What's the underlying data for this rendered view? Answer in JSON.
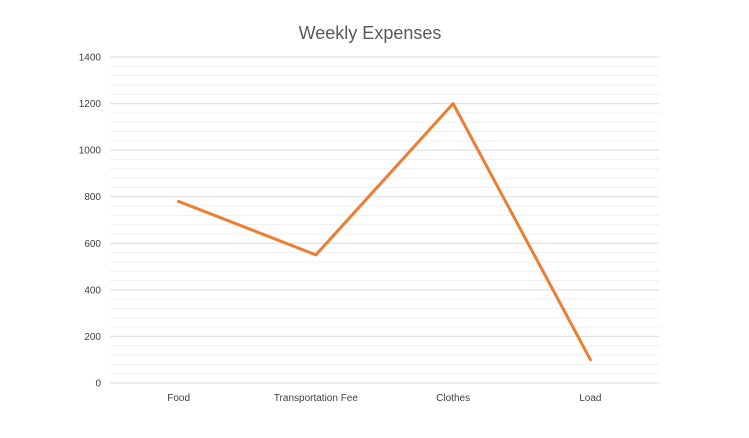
{
  "chart_data": {
    "type": "line",
    "title": "Weekly Expenses",
    "xlabel": "",
    "ylabel": "",
    "categories": [
      "Food",
      "Transportation Fee",
      "Clothes",
      "Load"
    ],
    "series": [
      {
        "values": [
          780,
          550,
          1200,
          100
        ],
        "color": "#ed7d31"
      }
    ],
    "ylim": [
      0,
      1400
    ],
    "y_ticks": [
      "0",
      "200",
      "400",
      "600",
      "800",
      "1000",
      "1200",
      "1400"
    ],
    "y_tick_values": [
      0,
      200,
      400,
      600,
      800,
      1000,
      1200,
      1400
    ],
    "grid": true,
    "minor_grid": true,
    "legend": "none"
  }
}
